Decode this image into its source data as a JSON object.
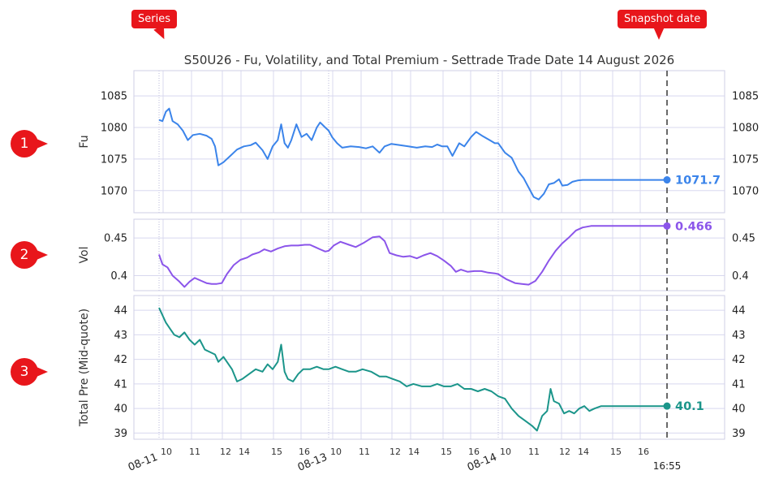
{
  "annotations": {
    "series_tag": "Series",
    "snapshot_tag": "Snapshot date",
    "badges": [
      "1",
      "2",
      "3"
    ]
  },
  "chart_data": {
    "type": "line",
    "title": "S50U26 - Fu, Volatility, and Total Premium - Settrade Trade Date 14 August 2026",
    "colors": {
      "fu": "#3b84ea",
      "vol": "#8b55ea",
      "premium": "#1b958a",
      "annot": "#e8161b"
    },
    "sessions": [
      "08-11",
      "08-13",
      "08-14"
    ],
    "session_hours": [
      "10",
      "11",
      "12",
      "14",
      "15",
      "16"
    ],
    "snapshot_time": "16:55",
    "x_unit": "session index (0=08-11 open, 1=08-13 open, 2=08-14 open, 3=08-14 16:55)",
    "panels": [
      {
        "key": "fu",
        "ylabel": "Fu",
        "ylim": [
          1066.5,
          1089
        ],
        "yticks": [
          1070,
          1075,
          1080,
          1085
        ],
        "last_value": 1071.7,
        "last_label": "1071.7",
        "points": [
          [
            0.0,
            1081.2
          ],
          [
            0.02,
            1081.0
          ],
          [
            0.04,
            1082.5
          ],
          [
            0.06,
            1083.0
          ],
          [
            0.08,
            1081.0
          ],
          [
            0.11,
            1080.5
          ],
          [
            0.14,
            1079.5
          ],
          [
            0.17,
            1078.0
          ],
          [
            0.2,
            1078.8
          ],
          [
            0.24,
            1079.0
          ],
          [
            0.28,
            1078.7
          ],
          [
            0.31,
            1078.2
          ],
          [
            0.33,
            1077.0
          ],
          [
            0.35,
            1074.0
          ],
          [
            0.38,
            1074.5
          ],
          [
            0.42,
            1075.5
          ],
          [
            0.46,
            1076.5
          ],
          [
            0.5,
            1077.0
          ],
          [
            0.54,
            1077.2
          ],
          [
            0.57,
            1077.6
          ],
          [
            0.61,
            1076.4
          ],
          [
            0.64,
            1075.0
          ],
          [
            0.67,
            1077.0
          ],
          [
            0.7,
            1078.0
          ],
          [
            0.72,
            1080.5
          ],
          [
            0.74,
            1077.5
          ],
          [
            0.76,
            1076.8
          ],
          [
            0.78,
            1078.0
          ],
          [
            0.81,
            1080.5
          ],
          [
            0.84,
            1078.5
          ],
          [
            0.87,
            1079.0
          ],
          [
            0.9,
            1078.0
          ],
          [
            0.93,
            1080.0
          ],
          [
            0.95,
            1080.8
          ],
          [
            0.98,
            1080.0
          ],
          [
            1.0,
            1079.5
          ],
          [
            1.02,
            1078.5
          ],
          [
            1.05,
            1077.5
          ],
          [
            1.08,
            1076.8
          ],
          [
            1.13,
            1077.0
          ],
          [
            1.18,
            1076.9
          ],
          [
            1.22,
            1076.7
          ],
          [
            1.26,
            1077.0
          ],
          [
            1.3,
            1076.0
          ],
          [
            1.33,
            1077.0
          ],
          [
            1.37,
            1077.4
          ],
          [
            1.42,
            1077.2
          ],
          [
            1.47,
            1077.0
          ],
          [
            1.52,
            1076.8
          ],
          [
            1.57,
            1077.0
          ],
          [
            1.61,
            1076.9
          ],
          [
            1.64,
            1077.3
          ],
          [
            1.67,
            1077.0
          ],
          [
            1.7,
            1077.0
          ],
          [
            1.73,
            1075.5
          ],
          [
            1.77,
            1077.5
          ],
          [
            1.8,
            1077.0
          ],
          [
            1.84,
            1078.5
          ],
          [
            1.87,
            1079.3
          ],
          [
            1.91,
            1078.6
          ],
          [
            1.95,
            1078.0
          ],
          [
            1.98,
            1077.5
          ],
          [
            2.0,
            1077.5
          ],
          [
            2.04,
            1076.0
          ],
          [
            2.08,
            1075.2
          ],
          [
            2.12,
            1073.0
          ],
          [
            2.15,
            1072.0
          ],
          [
            2.18,
            1070.5
          ],
          [
            2.21,
            1069.0
          ],
          [
            2.24,
            1068.6
          ],
          [
            2.27,
            1069.5
          ],
          [
            2.3,
            1071.0
          ],
          [
            2.33,
            1071.2
          ],
          [
            2.36,
            1071.8
          ],
          [
            2.38,
            1070.8
          ],
          [
            2.41,
            1070.9
          ],
          [
            2.44,
            1071.4
          ],
          [
            2.47,
            1071.6
          ],
          [
            2.5,
            1071.7
          ],
          [
            3.0,
            1071.7
          ]
        ]
      },
      {
        "key": "vol",
        "ylabel": "Vol",
        "ylim": [
          0.38,
          0.475
        ],
        "yticks": [
          0.4,
          0.45
        ],
        "last_value": 0.466,
        "last_label": "0.466",
        "points": [
          [
            0.0,
            0.428
          ],
          [
            0.02,
            0.415
          ],
          [
            0.05,
            0.411
          ],
          [
            0.08,
            0.4
          ],
          [
            0.12,
            0.392
          ],
          [
            0.15,
            0.385
          ],
          [
            0.18,
            0.392
          ],
          [
            0.21,
            0.397
          ],
          [
            0.25,
            0.393
          ],
          [
            0.28,
            0.39
          ],
          [
            0.31,
            0.389
          ],
          [
            0.34,
            0.389
          ],
          [
            0.37,
            0.39
          ],
          [
            0.4,
            0.402
          ],
          [
            0.44,
            0.414
          ],
          [
            0.48,
            0.421
          ],
          [
            0.52,
            0.424
          ],
          [
            0.55,
            0.428
          ],
          [
            0.59,
            0.431
          ],
          [
            0.62,
            0.435
          ],
          [
            0.66,
            0.432
          ],
          [
            0.7,
            0.436
          ],
          [
            0.74,
            0.439
          ],
          [
            0.78,
            0.44
          ],
          [
            0.82,
            0.44
          ],
          [
            0.86,
            0.441
          ],
          [
            0.89,
            0.441
          ],
          [
            0.92,
            0.438
          ],
          [
            0.95,
            0.435
          ],
          [
            0.98,
            0.432
          ],
          [
            1.0,
            0.433
          ],
          [
            1.03,
            0.44
          ],
          [
            1.07,
            0.445
          ],
          [
            1.12,
            0.441
          ],
          [
            1.16,
            0.438
          ],
          [
            1.21,
            0.444
          ],
          [
            1.26,
            0.451
          ],
          [
            1.3,
            0.452
          ],
          [
            1.33,
            0.446
          ],
          [
            1.36,
            0.43
          ],
          [
            1.4,
            0.427
          ],
          [
            1.44,
            0.425
          ],
          [
            1.48,
            0.426
          ],
          [
            1.52,
            0.423
          ],
          [
            1.56,
            0.427
          ],
          [
            1.6,
            0.43
          ],
          [
            1.64,
            0.426
          ],
          [
            1.68,
            0.42
          ],
          [
            1.72,
            0.413
          ],
          [
            1.75,
            0.405
          ],
          [
            1.78,
            0.408
          ],
          [
            1.82,
            0.405
          ],
          [
            1.86,
            0.406
          ],
          [
            1.9,
            0.406
          ],
          [
            1.94,
            0.404
          ],
          [
            1.98,
            0.403
          ],
          [
            2.0,
            0.402
          ],
          [
            2.05,
            0.395
          ],
          [
            2.1,
            0.39
          ],
          [
            2.14,
            0.389
          ],
          [
            2.18,
            0.388
          ],
          [
            2.22,
            0.393
          ],
          [
            2.26,
            0.405
          ],
          [
            2.3,
            0.42
          ],
          [
            2.34,
            0.433
          ],
          [
            2.38,
            0.443
          ],
          [
            2.42,
            0.451
          ],
          [
            2.46,
            0.46
          ],
          [
            2.5,
            0.464
          ],
          [
            2.55,
            0.466
          ],
          [
            3.0,
            0.466
          ]
        ]
      },
      {
        "key": "premium",
        "ylabel": "Total Pre (Mid-quote)",
        "ylim": [
          38.75,
          44.6
        ],
        "yticks": [
          39,
          40,
          41,
          42,
          43,
          44
        ],
        "last_value": 40.1,
        "last_label": "40.1",
        "points": [
          [
            0.0,
            44.1
          ],
          [
            0.02,
            43.8
          ],
          [
            0.04,
            43.5
          ],
          [
            0.07,
            43.2
          ],
          [
            0.09,
            43.0
          ],
          [
            0.12,
            42.9
          ],
          [
            0.15,
            43.1
          ],
          [
            0.18,
            42.8
          ],
          [
            0.21,
            42.6
          ],
          [
            0.24,
            42.8
          ],
          [
            0.27,
            42.4
          ],
          [
            0.3,
            42.3
          ],
          [
            0.33,
            42.2
          ],
          [
            0.35,
            41.9
          ],
          [
            0.38,
            42.1
          ],
          [
            0.41,
            41.8
          ],
          [
            0.43,
            41.6
          ],
          [
            0.46,
            41.1
          ],
          [
            0.49,
            41.2
          ],
          [
            0.53,
            41.4
          ],
          [
            0.57,
            41.6
          ],
          [
            0.61,
            41.5
          ],
          [
            0.64,
            41.8
          ],
          [
            0.67,
            41.6
          ],
          [
            0.7,
            41.9
          ],
          [
            0.72,
            42.6
          ],
          [
            0.74,
            41.5
          ],
          [
            0.76,
            41.2
          ],
          [
            0.79,
            41.1
          ],
          [
            0.82,
            41.4
          ],
          [
            0.85,
            41.6
          ],
          [
            0.89,
            41.6
          ],
          [
            0.93,
            41.7
          ],
          [
            0.97,
            41.6
          ],
          [
            1.0,
            41.6
          ],
          [
            1.04,
            41.7
          ],
          [
            1.08,
            41.6
          ],
          [
            1.12,
            41.5
          ],
          [
            1.16,
            41.5
          ],
          [
            1.2,
            41.6
          ],
          [
            1.25,
            41.5
          ],
          [
            1.3,
            41.3
          ],
          [
            1.34,
            41.3
          ],
          [
            1.38,
            41.2
          ],
          [
            1.42,
            41.1
          ],
          [
            1.46,
            40.9
          ],
          [
            1.5,
            41.0
          ],
          [
            1.55,
            40.9
          ],
          [
            1.6,
            40.9
          ],
          [
            1.64,
            41.0
          ],
          [
            1.68,
            40.9
          ],
          [
            1.72,
            40.9
          ],
          [
            1.76,
            41.0
          ],
          [
            1.8,
            40.8
          ],
          [
            1.84,
            40.8
          ],
          [
            1.88,
            40.7
          ],
          [
            1.92,
            40.8
          ],
          [
            1.96,
            40.7
          ],
          [
            2.0,
            40.5
          ],
          [
            2.04,
            40.4
          ],
          [
            2.08,
            40.0
          ],
          [
            2.12,
            39.7
          ],
          [
            2.16,
            39.5
          ],
          [
            2.2,
            39.3
          ],
          [
            2.23,
            39.1
          ],
          [
            2.26,
            39.7
          ],
          [
            2.29,
            39.9
          ],
          [
            2.31,
            40.8
          ],
          [
            2.33,
            40.3
          ],
          [
            2.36,
            40.2
          ],
          [
            2.39,
            39.8
          ],
          [
            2.42,
            39.9
          ],
          [
            2.45,
            39.8
          ],
          [
            2.48,
            40.0
          ],
          [
            2.51,
            40.1
          ],
          [
            2.54,
            39.9
          ],
          [
            2.57,
            40.0
          ],
          [
            2.61,
            40.1
          ],
          [
            3.0,
            40.1
          ]
        ]
      }
    ]
  }
}
